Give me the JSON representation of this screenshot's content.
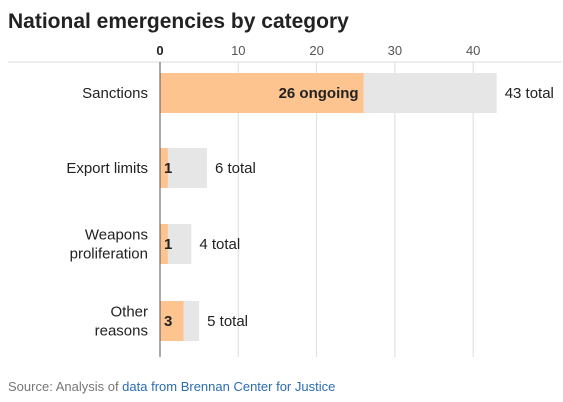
{
  "chart_data": {
    "type": "bar",
    "orientation": "horizontal",
    "title": "National emergencies by category",
    "xlabel": "",
    "ylabel": "",
    "xlim": [
      0,
      45
    ],
    "x_ticks": [
      0,
      10,
      20,
      30,
      40
    ],
    "grid": true,
    "categories": [
      [
        "Sanctions"
      ],
      [
        "Export limits"
      ],
      [
        "Weapons",
        "proliferation"
      ],
      [
        "Other",
        "reasons"
      ]
    ],
    "series": [
      {
        "values": [
          43,
          6,
          4,
          5
        ],
        "labels": [
          "43 total",
          "6 total",
          "4 total",
          "5 total"
        ],
        "color": "#e6e6e6"
      },
      {
        "values": [
          26,
          1,
          1,
          3
        ],
        "labels": [
          "26 ongoing",
          "1",
          "1",
          "3"
        ],
        "color": "#fdc48f"
      }
    ]
  },
  "source": {
    "prefix": "Source: Analysis of ",
    "link_text": "data from Brennan Center for Justice",
    "link_color": "#2a6db3"
  }
}
